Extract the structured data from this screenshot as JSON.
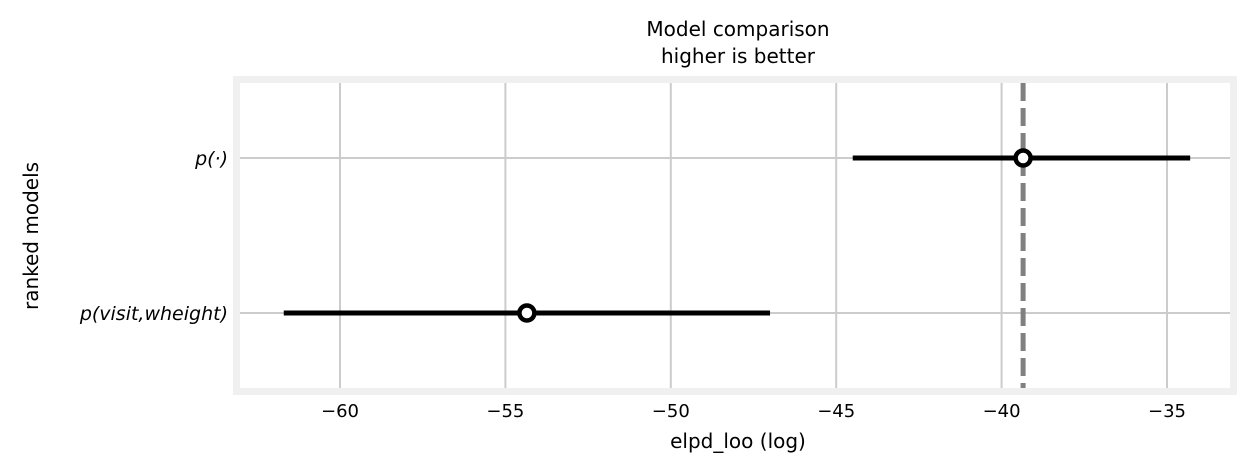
{
  "chart_data": {
    "type": "scatter",
    "title": "Model comparison",
    "subtitle": "higher is better",
    "xlabel": "elpd_loo (log)",
    "ylabel": "ranked models",
    "xlim": [
      -63.0,
      -33.0
    ],
    "xticks": [
      -60,
      -55,
      -50,
      -45,
      -40,
      -35
    ],
    "xtick_labels": [
      "−60",
      "−55",
      "−50",
      "−45",
      "−40",
      "−35"
    ],
    "grid": true,
    "reference_line": {
      "x": -39.35,
      "style": "dashed",
      "color": "#808080"
    },
    "models": [
      {
        "label": "p(·)",
        "elpd_loo": -39.35,
        "lower": -44.5,
        "upper": -34.3
      },
      {
        "label": "p(visit,wheight)",
        "elpd_loo": -54.35,
        "lower": -61.7,
        "upper": -47.0
      }
    ],
    "colors": {
      "background": "#ffffff",
      "frame": "#f0f0f0",
      "grid": "#cccccc",
      "points": "#000000",
      "reference": "#808080"
    }
  }
}
